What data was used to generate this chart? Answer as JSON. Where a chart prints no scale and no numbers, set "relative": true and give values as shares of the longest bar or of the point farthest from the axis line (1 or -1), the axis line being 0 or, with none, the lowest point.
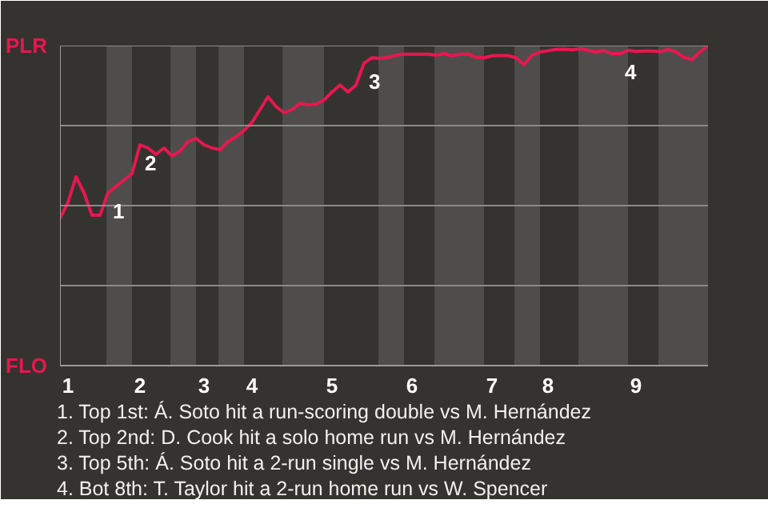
{
  "chart_data": {
    "type": "line",
    "relative": true,
    "categories": [
      null,
      "1",
      null,
      null,
      null,
      null,
      null,
      null,
      null,
      null,
      "2",
      null,
      null,
      null,
      null,
      null,
      null,
      null,
      "3",
      null,
      null,
      null,
      null,
      null,
      "4",
      null,
      null,
      null,
      null,
      null,
      null,
      null,
      null,
      null,
      "5",
      null,
      null,
      null,
      null,
      null,
      null,
      null,
      null,
      null,
      "6",
      null,
      null,
      null,
      null,
      null,
      null,
      null,
      null,
      null,
      "7",
      null,
      null,
      null,
      null,
      null,
      null,
      "8",
      null,
      null,
      null,
      null,
      null,
      null,
      null,
      null,
      null,
      null,
      "9",
      null,
      null,
      null,
      null,
      null,
      null,
      null,
      null,
      null
    ],
    "series": [
      {
        "color": "#e8174f",
        "values": [
          0.46,
          0.51,
          0.59,
          0.54,
          0.47,
          0.47,
          0.54,
          0.56,
          0.58,
          0.6,
          0.69,
          0.68,
          0.66,
          0.68,
          0.655,
          0.67,
          0.7,
          0.71,
          0.69,
          0.68,
          0.675,
          0.7,
          0.715,
          0.735,
          0.76,
          0.8,
          0.84,
          0.81,
          0.79,
          0.8,
          0.82,
          0.815,
          0.817,
          0.83,
          0.855,
          0.877,
          0.855,
          0.877,
          0.945,
          0.962,
          0.96,
          0.963,
          0.97,
          0.973,
          0.973,
          0.973,
          0.973,
          0.97,
          0.975,
          0.968,
          0.973,
          0.974,
          0.963,
          0.962,
          0.968,
          0.969,
          0.969,
          0.962,
          0.94,
          0.97,
          0.98,
          0.984,
          0.988,
          0.989,
          0.987,
          0.99,
          0.985,
          0.98,
          0.985,
          0.975,
          0.975,
          0.985,
          0.982,
          0.983,
          0.983,
          0.981,
          0.988,
          0.98,
          0.963,
          0.957,
          0.98,
          1.0
        ]
      }
    ],
    "grid": "y",
    "marker": "none",
    "line_style": "solid",
    "annotations": [
      "PLR",
      "FLO",
      {
        "text": "1",
        "y": 0.54
      },
      {
        "text": "2",
        "y": 0.69
      },
      {
        "text": "3",
        "y": 0.945
      },
      {
        "text": "4",
        "y": 0.975
      },
      "1. Top 1st: Á. Soto hit a run-scoring double vs M. Hernández",
      "2. Top 2nd: D. Cook hit a solo home run vs M. Hernández",
      "3. Top 5th: Á. Soto hit a 2-run single vs M. Hernández",
      "4. Bot 8th: T. Taylor hit a 2-run home run vs W. Spencer"
    ]
  }
}
